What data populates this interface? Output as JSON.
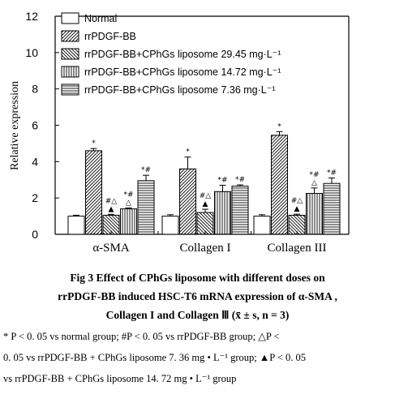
{
  "chart_data": {
    "type": "bar",
    "ylabel": "Relative expression",
    "ylim": [
      0,
      12
    ],
    "yticks": [
      0,
      2,
      4,
      6,
      8,
      10,
      12
    ],
    "categories": [
      "α-SMA",
      "Collagen I",
      "Collagen III"
    ],
    "legend_position": "top-left",
    "series": [
      {
        "name": "Normal",
        "pattern": "blank",
        "values": [
          1.0,
          1.0,
          1.0
        ],
        "errors": [
          0.05,
          0.08,
          0.08
        ],
        "marks": [
          "",
          "",
          ""
        ]
      },
      {
        "name": "rrPDGF-BB",
        "pattern": "diag-right",
        "values": [
          4.6,
          3.6,
          5.45
        ],
        "errors": [
          0.12,
          0.65,
          0.2
        ],
        "marks": [
          "*",
          "*",
          "*"
        ]
      },
      {
        "name": "rrPDGF-BB+CPhGs liposome 29.45 mg·L⁻¹",
        "pattern": "diag-left",
        "values": [
          1.05,
          1.2,
          1.05
        ],
        "errors": [
          0.05,
          0.18,
          0.06
        ],
        "marks": [
          "#△\n▲",
          "#△\n▲",
          "#△\n▲"
        ]
      },
      {
        "name": "rrPDGF-BB+CPhGs liposome 14.72 mg·L⁻¹",
        "pattern": "vertical",
        "values": [
          1.4,
          2.35,
          2.25
        ],
        "errors": [
          0.05,
          0.35,
          0.3
        ],
        "marks": [
          "*#\n△",
          "*#",
          "*#\n△"
        ]
      },
      {
        "name": "rrPDGF-BB+CPhGs liposome 7.36 mg·L⁻¹",
        "pattern": "horizontal",
        "values": [
          2.95,
          2.65,
          2.8
        ],
        "errors": [
          0.3,
          0.07,
          0.3
        ],
        "marks": [
          "*#",
          "*#",
          "*#"
        ]
      }
    ]
  },
  "caption": {
    "line1": "Fig 3   Effect of CPhGs liposome with different doses on",
    "line2": "rrPDGF-BB induced HSC-T6 mRNA expression of α-SMA ,",
    "line3": "Collagen I and Collagen Ⅲ (x̄ ± s,  n = 3)"
  },
  "notes": {
    "line1": "* P < 0. 05 vs normal group; #P < 0. 05 vs rrPDGF-BB group; △P <",
    "line2": "0. 05 vs rrPDGF-BB + CPhGs liposome 7. 36 mg • L⁻¹ group; ▲P < 0. 05",
    "line3": "vs rrPDGF-BB + CPhGs liposome 14. 72 mg • L⁻¹ group"
  }
}
